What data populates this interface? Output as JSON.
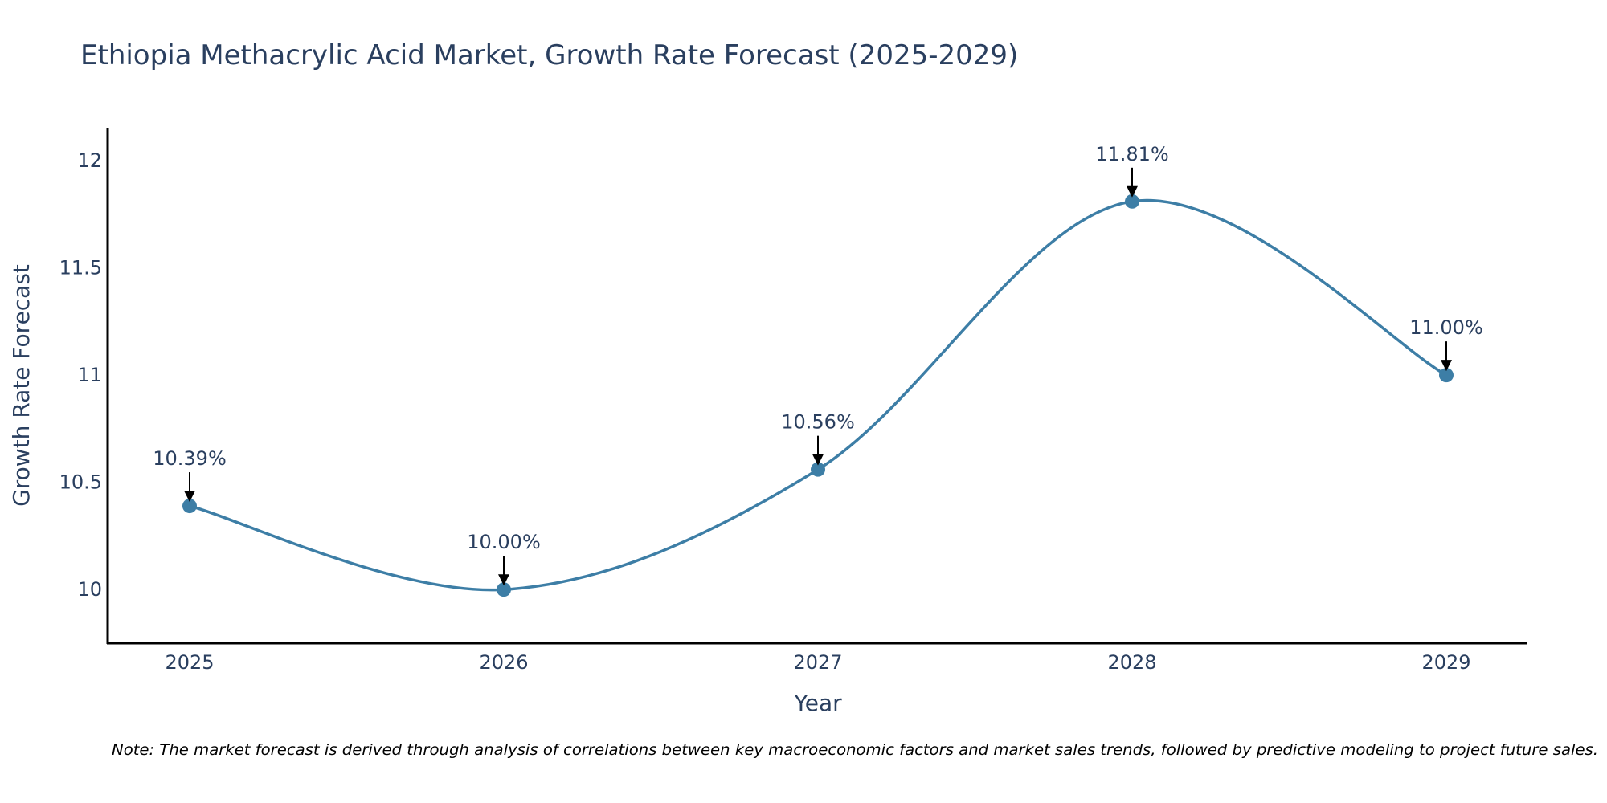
{
  "chart_data": {
    "type": "line",
    "title": "Ethiopia Methacrylic Acid Market, Growth Rate Forecast (2025-2029)",
    "xlabel": "Year",
    "ylabel": "Growth Rate Forecast",
    "categories": [
      "2025",
      "2026",
      "2027",
      "2028",
      "2029"
    ],
    "values": [
      10.39,
      10.0,
      10.56,
      11.81,
      11.0
    ],
    "data_labels": [
      "10.39%",
      "10.00%",
      "10.56%",
      "11.81%",
      "11.00%"
    ],
    "ylim": [
      9.75,
      12.15
    ],
    "yticks": [
      10,
      10.5,
      11,
      11.5,
      12
    ],
    "ytick_labels": [
      "10",
      "10.5",
      "11",
      "11.5",
      "12"
    ],
    "grid": false,
    "line_shape": "spline",
    "colors": {
      "line": "#3d7ea6",
      "marker": "#3d7ea6",
      "text": "#2a3f5f",
      "axis": "#000000"
    },
    "note": "Note: The market forecast is derived through analysis of correlations between key macroeconomic factors and market sales trends, followed by predictive modeling to project future sales."
  }
}
